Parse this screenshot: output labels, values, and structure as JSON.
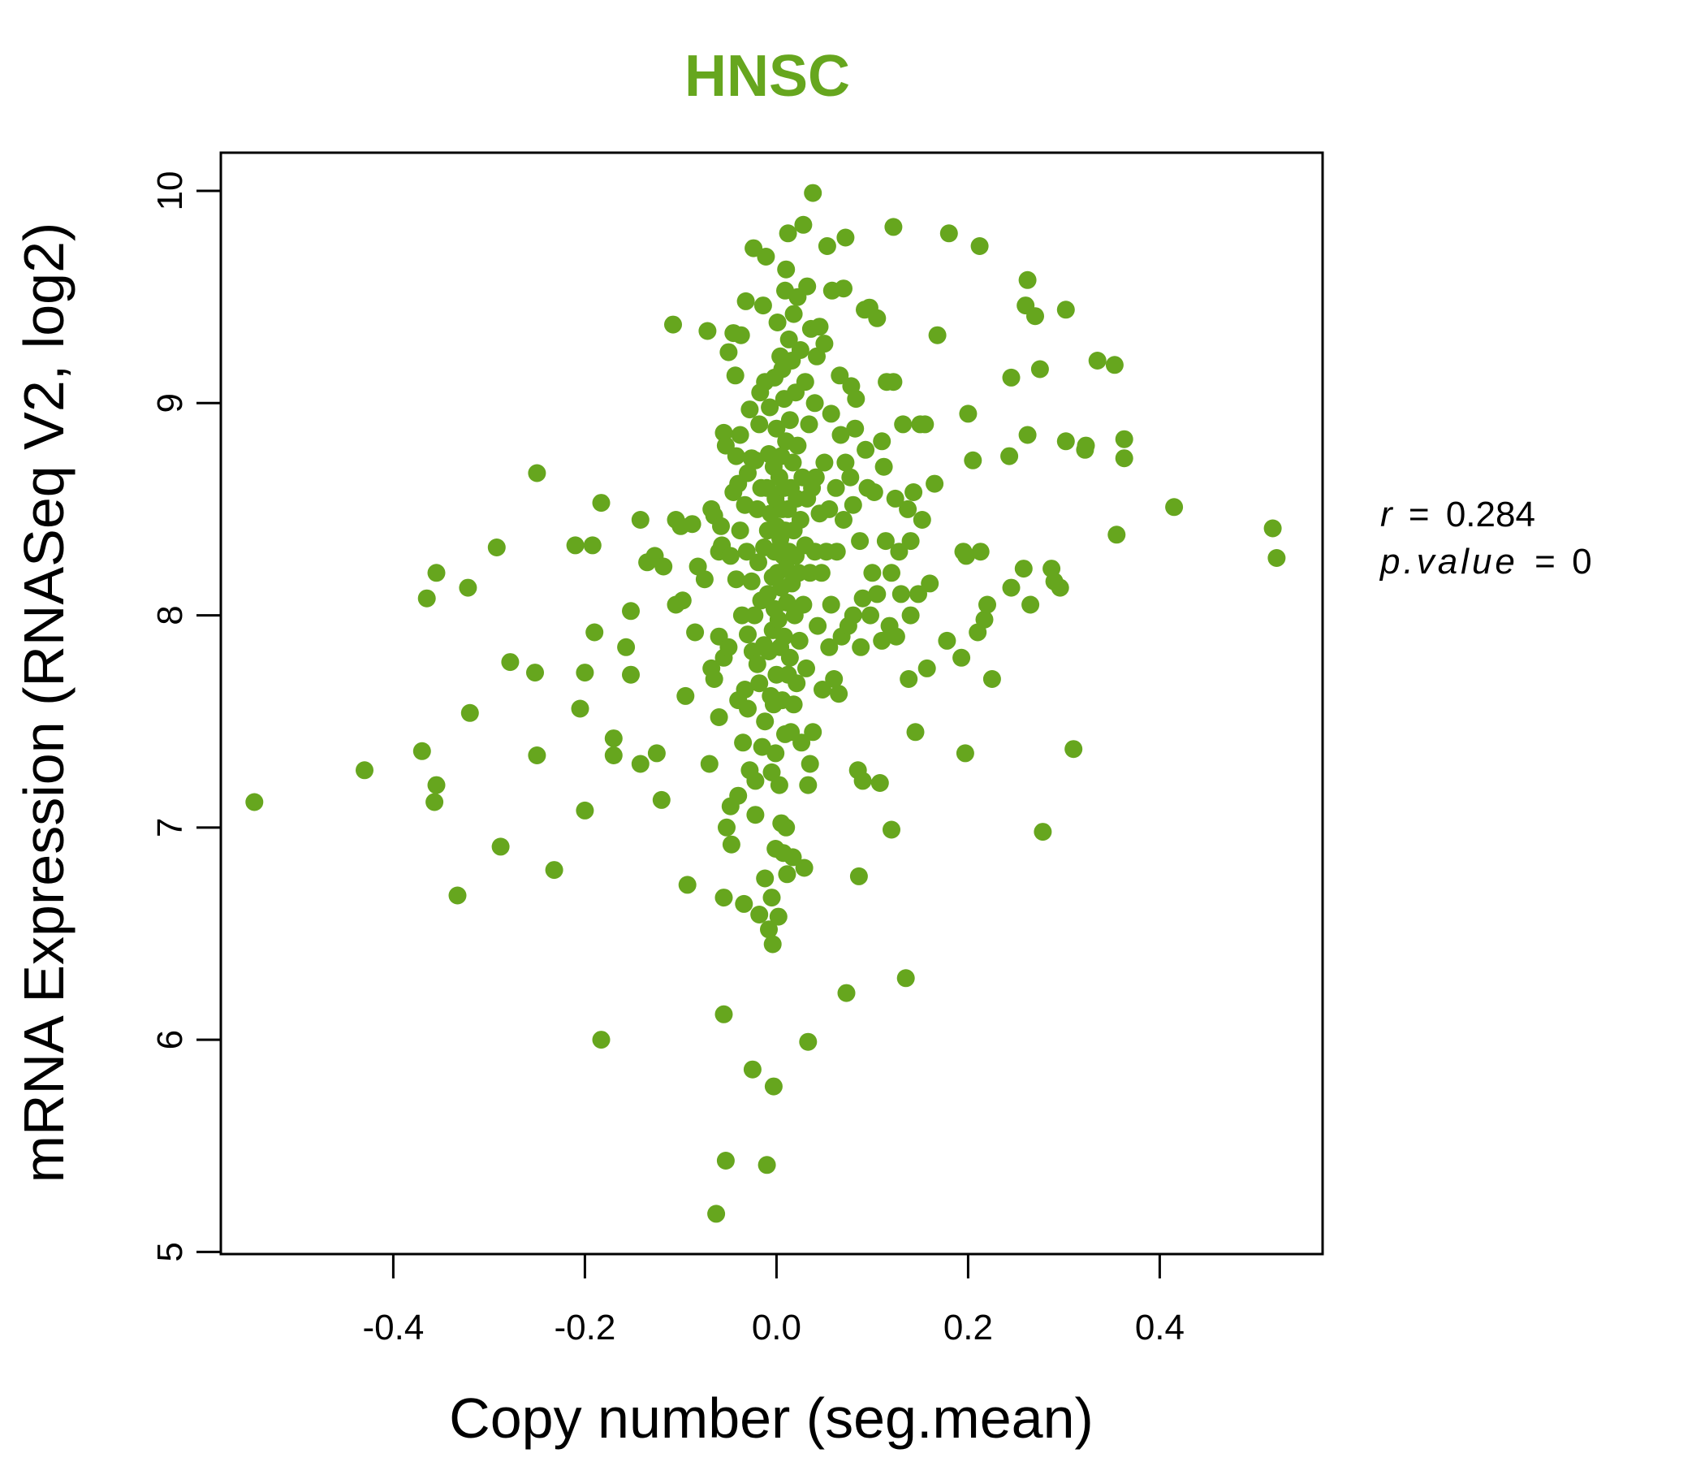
{
  "chart_data": {
    "type": "scatter",
    "title": "HNSC",
    "xlabel": "Copy number (seg.mean)",
    "ylabel": "mRNA Expression (RNASeq V2, log2)",
    "xlim": [
      -0.58,
      0.57
    ],
    "ylim": [
      4.99,
      10.18
    ],
    "x_ticks": [
      -0.4,
      -0.2,
      0.0,
      0.2,
      0.4
    ],
    "x_tick_labels": [
      "-0.4",
      "-0.2",
      "0.0",
      "0.2",
      "0.4"
    ],
    "y_ticks": [
      5,
      6,
      7,
      8,
      9,
      10
    ],
    "y_tick_labels": [
      "5",
      "6",
      "7",
      "8",
      "9",
      "10"
    ],
    "grid": false,
    "point_color": "#66a61e",
    "annotation": {
      "r_label": "r",
      "r_value": "0.284",
      "p_label": "p.value",
      "p_value": "0"
    },
    "points": [
      [
        -0.545,
        7.12
      ],
      [
        -0.43,
        7.27
      ],
      [
        -0.37,
        7.36
      ],
      [
        -0.365,
        8.08
      ],
      [
        -0.355,
        8.2
      ],
      [
        -0.355,
        7.2
      ],
      [
        -0.357,
        7.12
      ],
      [
        -0.333,
        6.68
      ],
      [
        -0.322,
        8.13
      ],
      [
        -0.32,
        7.54
      ],
      [
        -0.292,
        8.32
      ],
      [
        -0.288,
        6.91
      ],
      [
        -0.278,
        7.78
      ],
      [
        -0.252,
        7.73
      ],
      [
        -0.25,
        8.67
      ],
      [
        -0.25,
        7.34
      ],
      [
        -0.232,
        6.8
      ],
      [
        -0.21,
        8.33
      ],
      [
        -0.205,
        7.56
      ],
      [
        -0.2,
        7.73
      ],
      [
        -0.2,
        7.08
      ],
      [
        -0.192,
        8.33
      ],
      [
        -0.19,
        7.92
      ],
      [
        -0.183,
        8.53
      ],
      [
        -0.183,
        6.0
      ],
      [
        -0.17,
        7.42
      ],
      [
        -0.17,
        7.34
      ],
      [
        -0.157,
        7.85
      ],
      [
        -0.152,
        7.72
      ],
      [
        -0.152,
        8.02
      ],
      [
        -0.142,
        8.45
      ],
      [
        -0.142,
        7.3
      ],
      [
        -0.135,
        8.25
      ],
      [
        -0.127,
        8.28
      ],
      [
        -0.125,
        7.35
      ],
      [
        -0.12,
        7.13
      ],
      [
        -0.118,
        8.23
      ],
      [
        -0.108,
        9.37
      ],
      [
        -0.105,
        8.45
      ],
      [
        -0.105,
        8.05
      ],
      [
        -0.1,
        8.42
      ],
      [
        -0.098,
        8.07
      ],
      [
        -0.095,
        7.62
      ],
      [
        -0.093,
        6.73
      ],
      [
        -0.088,
        8.43
      ],
      [
        -0.085,
        7.92
      ],
      [
        -0.082,
        8.23
      ],
      [
        -0.075,
        8.17
      ],
      [
        -0.072,
        9.34
      ],
      [
        -0.07,
        7.3
      ],
      [
        -0.068,
        8.5
      ],
      [
        -0.068,
        7.75
      ],
      [
        -0.065,
        8.47
      ],
      [
        -0.065,
        7.7
      ],
      [
        -0.063,
        5.18
      ],
      [
        -0.06,
        8.3
      ],
      [
        -0.06,
        7.9
      ],
      [
        -0.06,
        7.52
      ],
      [
        -0.058,
        8.42
      ],
      [
        -0.057,
        8.33
      ],
      [
        -0.055,
        8.86
      ],
      [
        -0.055,
        7.8
      ],
      [
        -0.055,
        6.67
      ],
      [
        -0.055,
        6.12
      ],
      [
        -0.053,
        8.8
      ],
      [
        -0.05,
        7.85
      ],
      [
        -0.052,
        7.0
      ],
      [
        -0.053,
        5.43
      ],
      [
        -0.05,
        9.24
      ],
      [
        -0.048,
        8.28
      ],
      [
        -0.048,
        7.1
      ],
      [
        -0.047,
        6.92
      ],
      [
        -0.045,
        9.33
      ],
      [
        -0.045,
        8.58
      ],
      [
        -0.043,
        9.13
      ],
      [
        -0.042,
        8.75
      ],
      [
        -0.042,
        8.17
      ],
      [
        -0.04,
        8.62
      ],
      [
        -0.04,
        7.6
      ],
      [
        -0.04,
        7.15
      ],
      [
        -0.038,
        8.85
      ],
      [
        -0.038,
        8.4
      ],
      [
        -0.037,
        9.32
      ],
      [
        -0.036,
        8.0
      ],
      [
        -0.035,
        7.4
      ],
      [
        -0.034,
        6.64
      ],
      [
        -0.033,
        8.52
      ],
      [
        -0.033,
        7.65
      ],
      [
        -0.032,
        9.48
      ],
      [
        -0.031,
        8.3
      ],
      [
        -0.03,
        8.67
      ],
      [
        -0.03,
        7.91
      ],
      [
        -0.03,
        7.56
      ],
      [
        -0.028,
        8.97
      ],
      [
        -0.028,
        7.27
      ],
      [
        -0.026,
        8.74
      ],
      [
        -0.026,
        8.16
      ],
      [
        -0.025,
        7.83
      ],
      [
        -0.025,
        5.86
      ],
      [
        -0.024,
        9.73
      ],
      [
        -0.023,
        8.0
      ],
      [
        -0.022,
        8.73
      ],
      [
        -0.022,
        7.22
      ],
      [
        -0.022,
        7.06
      ],
      [
        -0.02,
        8.5
      ],
      [
        -0.02,
        7.77
      ],
      [
        -0.019,
        8.25
      ],
      [
        -0.018,
        8.9
      ],
      [
        -0.018,
        7.68
      ],
      [
        -0.018,
        6.59
      ],
      [
        -0.017,
        9.05
      ],
      [
        -0.016,
        8.6
      ],
      [
        -0.016,
        8.07
      ],
      [
        -0.015,
        7.38
      ],
      [
        -0.014,
        9.46
      ],
      [
        -0.013,
        8.32
      ],
      [
        -0.013,
        7.86
      ],
      [
        -0.012,
        9.1
      ],
      [
        -0.012,
        7.5
      ],
      [
        -0.012,
        6.76
      ],
      [
        -0.011,
        9.69
      ],
      [
        -0.01,
        8.6
      ],
      [
        -0.01,
        5.41
      ],
      [
        -0.009,
        8.4
      ],
      [
        -0.009,
        8.1
      ],
      [
        -0.008,
        8.76
      ],
      [
        -0.008,
        7.83
      ],
      [
        -0.008,
        6.52
      ],
      [
        -0.007,
        8.98
      ],
      [
        -0.006,
        8.48
      ],
      [
        -0.006,
        7.62
      ],
      [
        -0.005,
        7.26
      ],
      [
        -0.005,
        6.67
      ],
      [
        -0.004,
        8.18
      ],
      [
        -0.004,
        7.93
      ],
      [
        -0.004,
        6.45
      ],
      [
        -0.003,
        8.7
      ],
      [
        -0.003,
        7.58
      ],
      [
        -0.003,
        5.78
      ],
      [
        -0.002,
        9.12
      ],
      [
        -0.002,
        8.3
      ],
      [
        -0.002,
        8.03
      ],
      [
        -0.001,
        8.55
      ],
      [
        -0.001,
        7.35
      ],
      [
        -0.001,
        6.9
      ],
      [
        0.0,
        8.88
      ],
      [
        0.0,
        8.42
      ],
      [
        0.0,
        7.72
      ],
      [
        0.001,
        9.38
      ],
      [
        0.001,
        8.2
      ],
      [
        0.002,
        7.98
      ],
      [
        0.002,
        6.58
      ],
      [
        0.003,
        8.65
      ],
      [
        0.003,
        7.2
      ],
      [
        0.004,
        9.22
      ],
      [
        0.004,
        8.36
      ],
      [
        0.004,
        7.85
      ],
      [
        0.005,
        8.75
      ],
      [
        0.005,
        8.13
      ],
      [
        0.005,
        7.02
      ],
      [
        0.006,
        9.16
      ],
      [
        0.006,
        8.5
      ],
      [
        0.006,
        7.6
      ],
      [
        0.007,
        8.28
      ],
      [
        0.007,
        6.88
      ],
      [
        0.008,
        9.02
      ],
      [
        0.008,
        8.6
      ],
      [
        0.008,
        7.9
      ],
      [
        0.009,
        9.53
      ],
      [
        0.009,
        8.4
      ],
      [
        0.009,
        7.44
      ],
      [
        0.01,
        9.63
      ],
      [
        0.01,
        8.82
      ],
      [
        0.01,
        8.22
      ],
      [
        0.01,
        7.0
      ],
      [
        0.011,
        8.06
      ],
      [
        0.011,
        6.78
      ],
      [
        0.012,
        9.8
      ],
      [
        0.012,
        8.5
      ],
      [
        0.012,
        7.72
      ],
      [
        0.013,
        9.3
      ],
      [
        0.013,
        8.3
      ],
      [
        0.014,
        8.92
      ],
      [
        0.014,
        7.8
      ],
      [
        0.015,
        8.6
      ],
      [
        0.015,
        7.45
      ],
      [
        0.016,
        9.2
      ],
      [
        0.016,
        8.15
      ],
      [
        0.017,
        8.72
      ],
      [
        0.017,
        6.86
      ],
      [
        0.018,
        9.42
      ],
      [
        0.018,
        8.4
      ],
      [
        0.018,
        7.58
      ],
      [
        0.019,
        8.0
      ],
      [
        0.02,
        9.05
      ],
      [
        0.02,
        8.28
      ],
      [
        0.021,
        8.55
      ],
      [
        0.021,
        7.68
      ],
      [
        0.022,
        9.5
      ],
      [
        0.022,
        8.8
      ],
      [
        0.023,
        8.2
      ],
      [
        0.024,
        7.88
      ],
      [
        0.025,
        9.25
      ],
      [
        0.025,
        8.45
      ],
      [
        0.026,
        7.4
      ],
      [
        0.027,
        8.65
      ],
      [
        0.028,
        9.84
      ],
      [
        0.028,
        8.05
      ],
      [
        0.029,
        6.81
      ],
      [
        0.03,
        9.1
      ],
      [
        0.03,
        8.33
      ],
      [
        0.031,
        7.75
      ],
      [
        0.032,
        9.55
      ],
      [
        0.032,
        8.55
      ],
      [
        0.033,
        7.2
      ],
      [
        0.033,
        5.99
      ],
      [
        0.034,
        8.9
      ],
      [
        0.035,
        8.2
      ],
      [
        0.035,
        7.3
      ],
      [
        0.036,
        9.35
      ],
      [
        0.037,
        8.6
      ],
      [
        0.038,
        9.99
      ],
      [
        0.038,
        7.45
      ],
      [
        0.04,
        9.0
      ],
      [
        0.04,
        8.3
      ],
      [
        0.041,
        8.65
      ],
      [
        0.042,
        9.22
      ],
      [
        0.043,
        7.95
      ],
      [
        0.045,
        9.36
      ],
      [
        0.045,
        8.48
      ],
      [
        0.047,
        8.2
      ],
      [
        0.048,
        7.65
      ],
      [
        0.05,
        9.28
      ],
      [
        0.05,
        8.72
      ],
      [
        0.052,
        8.3
      ],
      [
        0.053,
        9.74
      ],
      [
        0.055,
        8.5
      ],
      [
        0.055,
        7.85
      ],
      [
        0.057,
        8.95
      ],
      [
        0.057,
        8.05
      ],
      [
        0.058,
        9.53
      ],
      [
        0.06,
        7.7
      ],
      [
        0.062,
        8.6
      ],
      [
        0.063,
        8.3
      ],
      [
        0.065,
        7.63
      ],
      [
        0.066,
        9.13
      ],
      [
        0.067,
        8.85
      ],
      [
        0.068,
        7.9
      ],
      [
        0.07,
        9.54
      ],
      [
        0.07,
        8.45
      ],
      [
        0.072,
        9.78
      ],
      [
        0.072,
        8.72
      ],
      [
        0.073,
        6.22
      ],
      [
        0.075,
        7.95
      ],
      [
        0.077,
        8.65
      ],
      [
        0.078,
        9.08
      ],
      [
        0.08,
        8.52
      ],
      [
        0.08,
        8.0
      ],
      [
        0.082,
        8.88
      ],
      [
        0.083,
        9.02
      ],
      [
        0.085,
        7.27
      ],
      [
        0.086,
        6.77
      ],
      [
        0.087,
        8.35
      ],
      [
        0.088,
        7.85
      ],
      [
        0.09,
        8.08
      ],
      [
        0.09,
        7.22
      ],
      [
        0.092,
        9.44
      ],
      [
        0.093,
        8.78
      ],
      [
        0.095,
        8.6
      ],
      [
        0.097,
        9.45
      ],
      [
        0.098,
        8.0
      ],
      [
        0.1,
        8.2
      ],
      [
        0.102,
        8.58
      ],
      [
        0.105,
        9.4
      ],
      [
        0.105,
        8.1
      ],
      [
        0.108,
        7.21
      ],
      [
        0.11,
        8.82
      ],
      [
        0.11,
        7.88
      ],
      [
        0.112,
        8.7
      ],
      [
        0.114,
        8.35
      ],
      [
        0.115,
        9.1
      ],
      [
        0.118,
        7.95
      ],
      [
        0.12,
        8.2
      ],
      [
        0.12,
        6.99
      ],
      [
        0.122,
        9.83
      ],
      [
        0.122,
        9.1
      ],
      [
        0.124,
        8.55
      ],
      [
        0.125,
        7.9
      ],
      [
        0.128,
        8.3
      ],
      [
        0.13,
        8.1
      ],
      [
        0.132,
        8.9
      ],
      [
        0.135,
        6.29
      ],
      [
        0.137,
        8.5
      ],
      [
        0.138,
        7.7
      ],
      [
        0.14,
        8.35
      ],
      [
        0.14,
        8.0
      ],
      [
        0.143,
        8.58
      ],
      [
        0.145,
        7.45
      ],
      [
        0.148,
        8.1
      ],
      [
        0.15,
        8.9
      ],
      [
        0.152,
        8.45
      ],
      [
        0.155,
        8.9
      ],
      [
        0.157,
        7.75
      ],
      [
        0.16,
        8.15
      ],
      [
        0.165,
        8.62
      ],
      [
        0.168,
        9.32
      ],
      [
        0.178,
        7.88
      ],
      [
        0.18,
        9.8
      ],
      [
        0.193,
        7.8
      ],
      [
        0.195,
        8.3
      ],
      [
        0.197,
        7.35
      ],
      [
        0.198,
        8.28
      ],
      [
        0.2,
        8.95
      ],
      [
        0.205,
        8.73
      ],
      [
        0.21,
        7.92
      ],
      [
        0.212,
        9.74
      ],
      [
        0.213,
        8.3
      ],
      [
        0.217,
        7.98
      ],
      [
        0.22,
        8.05
      ],
      [
        0.225,
        7.7
      ],
      [
        0.243,
        8.75
      ],
      [
        0.245,
        8.13
      ],
      [
        0.245,
        9.12
      ],
      [
        0.258,
        8.22
      ],
      [
        0.26,
        9.46
      ],
      [
        0.262,
        8.85
      ],
      [
        0.262,
        9.58
      ],
      [
        0.265,
        8.05
      ],
      [
        0.27,
        9.41
      ],
      [
        0.275,
        9.16
      ],
      [
        0.278,
        6.98
      ],
      [
        0.287,
        8.22
      ],
      [
        0.29,
        8.16
      ],
      [
        0.296,
        8.13
      ],
      [
        0.302,
        8.82
      ],
      [
        0.302,
        9.44
      ],
      [
        0.31,
        7.37
      ],
      [
        0.322,
        8.78
      ],
      [
        0.323,
        8.8
      ],
      [
        0.335,
        9.2
      ],
      [
        0.353,
        9.18
      ],
      [
        0.355,
        8.38
      ],
      [
        0.363,
        8.83
      ],
      [
        0.363,
        8.74
      ],
      [
        0.415,
        8.51
      ],
      [
        0.518,
        8.41
      ],
      [
        0.522,
        8.27
      ]
    ]
  }
}
